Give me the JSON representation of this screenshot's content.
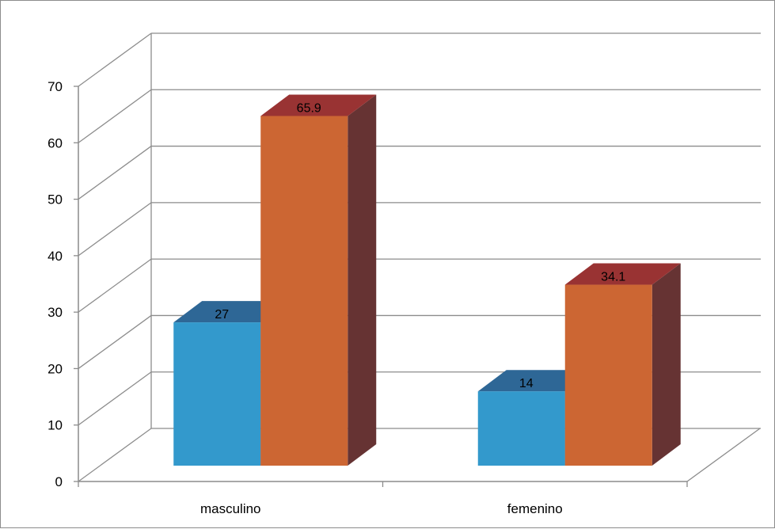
{
  "chart_data": {
    "type": "bar",
    "categories": [
      "masculino",
      "femenino"
    ],
    "series": [
      {
        "values": [
          27,
          14
        ],
        "color": "#3399cc"
      },
      {
        "values": [
          65.9,
          34.1
        ],
        "color": "#cc6633"
      }
    ],
    "data_labels": [
      [
        "27",
        "14"
      ],
      [
        "65.9",
        "34.1"
      ]
    ],
    "ylim": [
      0,
      70
    ],
    "y_ticks": [
      "0",
      "10",
      "20",
      "30",
      "40",
      "50",
      "60",
      "70"
    ],
    "grid": true,
    "legend": "none",
    "title": "",
    "xlabel": "",
    "ylabel": "",
    "style": "3d-column"
  }
}
